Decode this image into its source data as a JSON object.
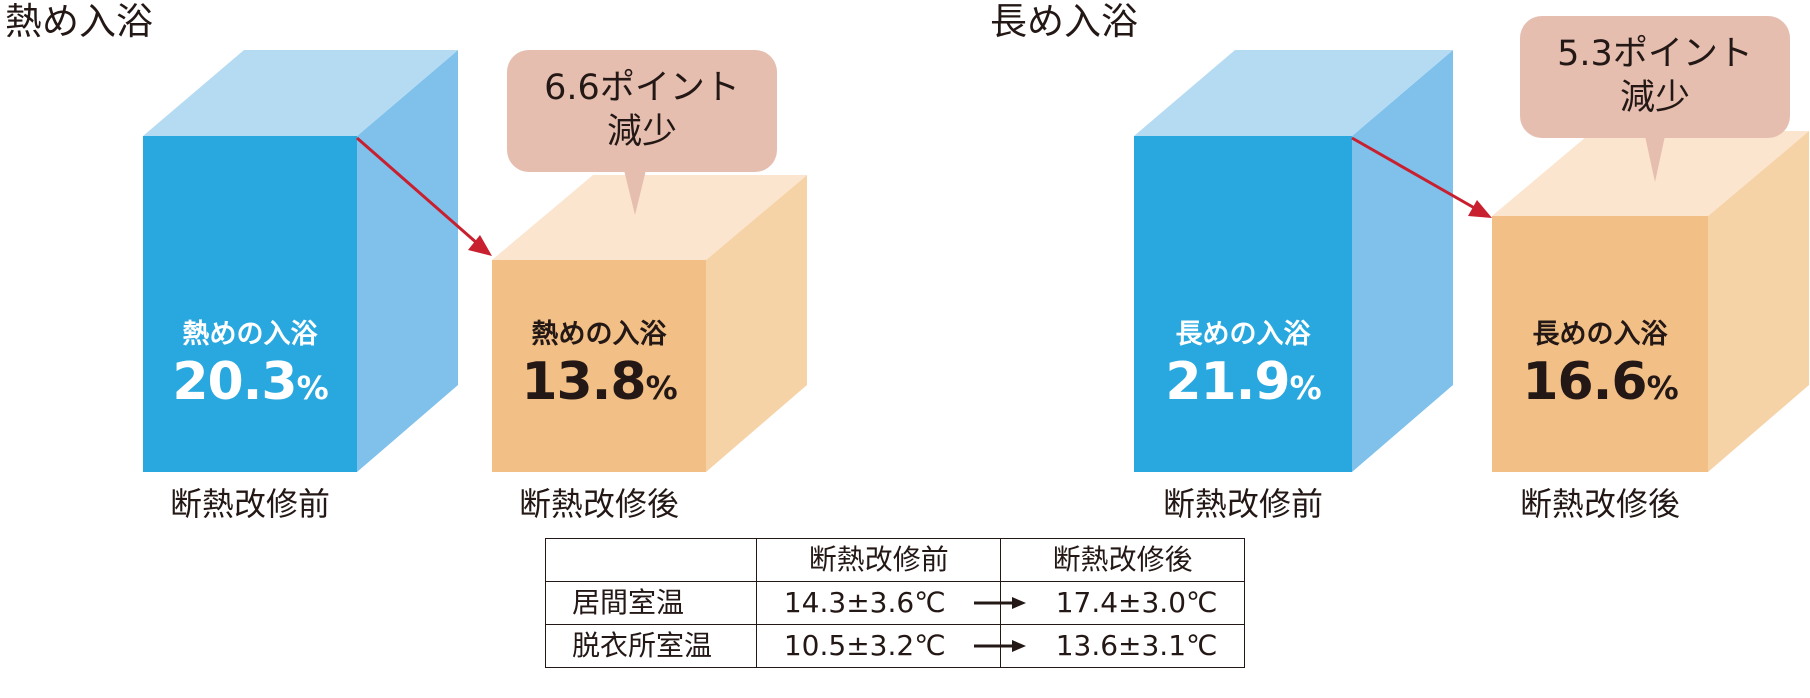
{
  "chart_data": [
    {
      "type": "bar",
      "title": "熱め入浴",
      "categories": [
        "断熱改修前",
        "断熱改修後"
      ],
      "series_label": "熱めの入浴",
      "values": [
        20.3,
        13.8
      ],
      "value_labels": [
        "20.3",
        "13.8"
      ],
      "unit": "%",
      "annotation": {
        "line1": "6.6ポイント",
        "line2": "減少"
      },
      "colors": [
        "#29a8e0",
        "#f2bf86"
      ]
    },
    {
      "type": "bar",
      "title": "長め入浴",
      "categories": [
        "断熱改修前",
        "断熱改修後"
      ],
      "series_label": "長めの入浴",
      "values": [
        21.9,
        16.6
      ],
      "value_labels": [
        "21.9",
        "16.6"
      ],
      "unit": "%",
      "annotation": {
        "line1": "5.3ポイント",
        "line2": "減少"
      },
      "colors": [
        "#29a8e0",
        "#f2bf86"
      ]
    }
  ],
  "table": {
    "headers": [
      "",
      "断熱改修前",
      "断熱改修後"
    ],
    "rows": [
      {
        "label": "居間室温",
        "before": "14.3±3.6℃",
        "after": "17.4±3.0℃"
      },
      {
        "label": "脱衣所室温",
        "before": "10.5±3.2℃",
        "after": "13.6±3.1℃"
      }
    ]
  },
  "colors": {
    "blue_front": "#29a8e0",
    "blue_side": "#7fc1eb",
    "blue_top": "#b5dbf3",
    "orange_front": "#f2bf86",
    "orange_side": "#f6d3a7",
    "orange_top": "#fbe5cf",
    "callout": "#e5beb0",
    "arrow": "#c8202f"
  }
}
